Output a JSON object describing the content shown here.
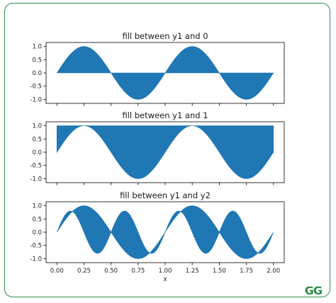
{
  "brand": {
    "logo_text": "GG",
    "accent_color": "#2f8d46"
  },
  "chart_data": [
    {
      "type": "area",
      "title": "fill between y1 and 0",
      "xlabel": "",
      "ylabel": "",
      "xlim": [
        -0.1,
        2.1
      ],
      "ylim": [
        -1.15,
        1.15
      ],
      "yticks": [
        1.0,
        0.5,
        0.0,
        -0.5,
        -1.0
      ],
      "ytick_labels": [
        "1.0",
        "0.5",
        "0.0",
        "-0.5",
        "-1.0"
      ],
      "xticks": [
        0.0,
        0.25,
        0.5,
        0.75,
        1.0,
        1.25,
        1.5,
        1.75,
        2.0
      ],
      "show_xtick_labels": false,
      "grid": false,
      "color": "#1f77b4",
      "series": [
        {
          "expression": "sin(2*pi*x)",
          "x_range": [
            0,
            2
          ]
        }
      ],
      "fill_between": {
        "upper": "sin(2*pi*x)",
        "lower": "0"
      }
    },
    {
      "type": "area",
      "title": "fill between y1 and 1",
      "xlabel": "",
      "ylabel": "",
      "xlim": [
        -0.1,
        2.1
      ],
      "ylim": [
        -1.15,
        1.15
      ],
      "yticks": [
        1.0,
        0.5,
        0.0,
        -0.5,
        -1.0
      ],
      "ytick_labels": [
        "1.0",
        "0.5",
        "0.0",
        "-0.5",
        "-1.0"
      ],
      "xticks": [
        0.0,
        0.25,
        0.5,
        0.75,
        1.0,
        1.25,
        1.5,
        1.75,
        2.0
      ],
      "show_xtick_labels": false,
      "grid": false,
      "color": "#1f77b4",
      "series": [
        {
          "expression": "sin(2*pi*x)",
          "x_range": [
            0,
            2
          ]
        }
      ],
      "fill_between": {
        "upper": "1",
        "lower": "sin(2*pi*x)"
      }
    },
    {
      "type": "area",
      "title": "fill between y1 and y2",
      "xlabel": "x",
      "ylabel": "",
      "xlim": [
        -0.1,
        2.1
      ],
      "ylim": [
        -1.15,
        1.15
      ],
      "yticks": [
        1.0,
        0.5,
        0.0,
        -0.5,
        -1.0
      ],
      "ytick_labels": [
        "1.0",
        "0.5",
        "0.0",
        "-0.5",
        "-1.0"
      ],
      "xticks": [
        0.0,
        0.25,
        0.5,
        0.75,
        1.0,
        1.25,
        1.5,
        1.75,
        2.0
      ],
      "xtick_labels": [
        "0.00",
        "0.25",
        "0.50",
        "0.75",
        "1.00",
        "1.25",
        "1.50",
        "1.75",
        "2.00"
      ],
      "show_xtick_labels": true,
      "grid": false,
      "color": "#1f77b4",
      "series": [
        {
          "expression": "sin(2*pi*x)",
          "x_range": [
            0,
            2
          ]
        },
        {
          "expression": "0.8*sin(4*pi*x)",
          "x_range": [
            0,
            2
          ]
        }
      ],
      "fill_between": {
        "upper": "sin(2*pi*x)",
        "lower": "0.8*sin(4*pi*x)"
      }
    }
  ]
}
